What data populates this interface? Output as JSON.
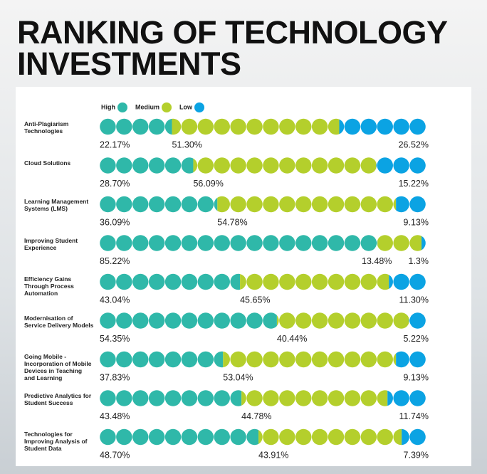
{
  "chart_data": {
    "type": "dot_stack",
    "title": "RANKING OF TECHNOLOGY INVESTMENTS",
    "categories": [
      "Anti-Plagiarism Technologies",
      "Cloud Solutions",
      "Learning Management Systems (LMS)",
      "Improving Student Experience",
      "Efficiency Gains Through Process Automation",
      "Modernisation of Service Delivery Models",
      "Going Mobile - Incorporation of Mobile Devices in Teaching and Learning",
      "Predictive Analytics for Student Success",
      "Technologies for Improving Analysis of Student Data"
    ],
    "series": [
      {
        "name": "High",
        "color": "#2fb8a9",
        "values": [
          22.17,
          28.7,
          36.09,
          85.22,
          43.04,
          54.35,
          37.83,
          43.48,
          48.7
        ],
        "value_labels": [
          "22.17%",
          "28.70%",
          "36.09%",
          "85.22%",
          "43.04%",
          "54.35%",
          "37.83%",
          "43.48%",
          "48.70%"
        ]
      },
      {
        "name": "Medium",
        "color": "#b4cf2c",
        "values": [
          51.3,
          56.09,
          54.78,
          13.48,
          45.65,
          40.44,
          53.04,
          44.78,
          43.91
        ],
        "value_labels": [
          "51.30%",
          "56.09%",
          "54.78%",
          "13.48%",
          "45.65%",
          "40.44%",
          "53.04%",
          "44.78%",
          "43.91%"
        ]
      },
      {
        "name": "Low",
        "color": "#0ba3e3",
        "values": [
          26.52,
          15.22,
          9.13,
          1.3,
          11.3,
          5.22,
          9.13,
          11.74,
          7.39
        ],
        "value_labels": [
          "26.52%",
          "15.22%",
          "9.13%",
          "1.3%",
          "11.30%",
          "5.22%",
          "9.13%",
          "11.74%",
          "7.39%"
        ]
      }
    ],
    "dots": 20,
    "xlim": [
      0,
      100
    ]
  }
}
